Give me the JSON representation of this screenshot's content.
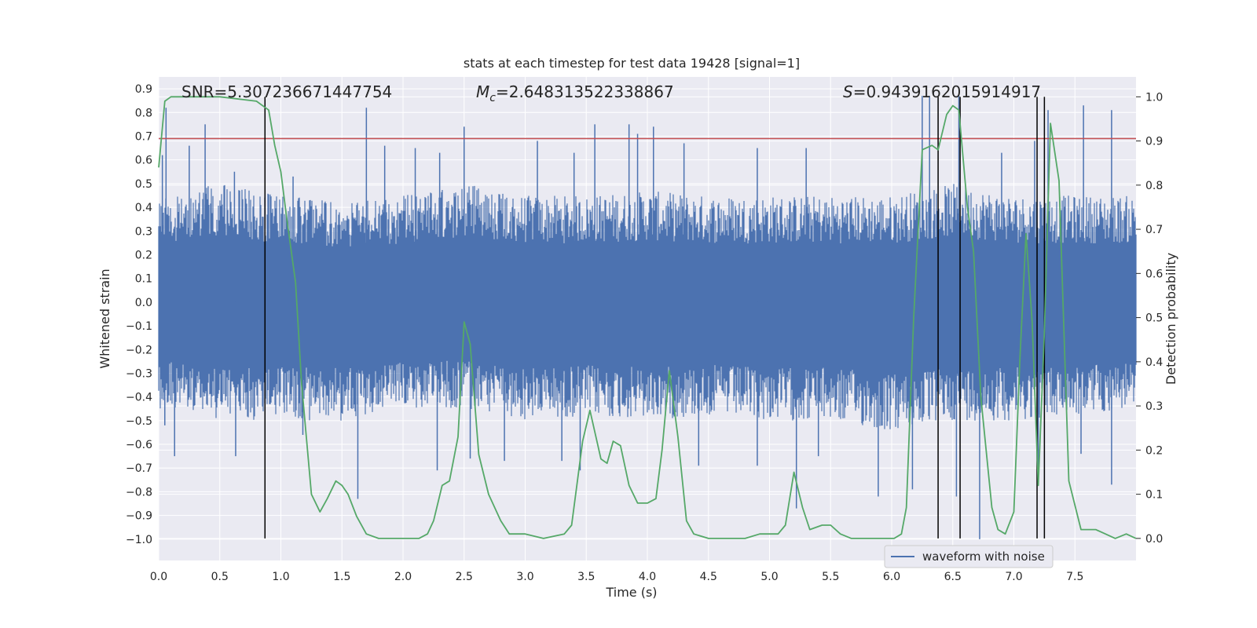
{
  "chart_data": {
    "type": "line",
    "title": "stats at each timestep for test data 19428 [signal=1]",
    "xlabel": "Time (s)",
    "ylabel_left": "Whitened strain",
    "ylabel_right": "Detection probability",
    "xlim": [
      0.0,
      8.0
    ],
    "ylim_left": [
      -1.09,
      0.95
    ],
    "ylim_right": [
      -0.05,
      1.045
    ],
    "x_ticks": [
      "0.0",
      "0.5",
      "1.0",
      "1.5",
      "2.0",
      "2.5",
      "3.0",
      "3.5",
      "4.0",
      "4.5",
      "5.0",
      "5.5",
      "6.0",
      "6.5",
      "7.0",
      "7.5"
    ],
    "y_ticks_left": [
      "0.9",
      "0.8",
      "0.7",
      "0.6",
      "0.5",
      "0.4",
      "0.3",
      "0.2",
      "0.1",
      "0.0",
      "−0.1",
      "−0.2",
      "−0.3",
      "−0.4",
      "−0.5",
      "−0.6",
      "−0.7",
      "−0.8",
      "−0.9",
      "−1.0"
    ],
    "y_ticks_right": [
      "1.0",
      "0.9",
      "0.8",
      "0.7",
      "0.6",
      "0.5",
      "0.4",
      "0.3",
      "0.2",
      "0.1",
      "0.0"
    ],
    "grid": true,
    "legend_position": "lower-right",
    "annotations": {
      "snr": "SNR=5.307236671447754",
      "mc_symbol": "M",
      "mc_sub": "c",
      "mc_value": "=2.648313522338867",
      "s_symbol": "S",
      "s_value": "=0.9439162015914917"
    },
    "colors": {
      "waveform": "#4c72b0",
      "probability": "#55a868",
      "threshold": "#c44e52",
      "markers": "#000000",
      "axes_bg": "#eaeaf2"
    },
    "threshold_y_left": 0.69,
    "vertical_markers_x": [
      0.87,
      6.38,
      6.56,
      7.19,
      7.25
    ],
    "series": [
      {
        "name": "waveform with noise",
        "type": "noise-band",
        "envelope_x": [
          0.0,
          0.5,
          1.0,
          1.5,
          2.0,
          2.5,
          3.0,
          3.5,
          4.0,
          4.5,
          5.0,
          5.5,
          6.0,
          6.5,
          7.0,
          7.5,
          8.0
        ],
        "envelope_upper": [
          0.45,
          0.5,
          0.45,
          0.42,
          0.45,
          0.5,
          0.45,
          0.45,
          0.47,
          0.45,
          0.45,
          0.45,
          0.45,
          0.5,
          0.45,
          0.45,
          0.45
        ],
        "envelope_lower": [
          -0.45,
          -0.5,
          -0.5,
          -0.5,
          -0.45,
          -0.45,
          -0.5,
          -0.48,
          -0.5,
          -0.48,
          -0.5,
          -0.5,
          -0.55,
          -0.5,
          -0.5,
          -0.48,
          -0.45
        ],
        "spikes_up": [
          [
            0.03,
            0.62
          ],
          [
            0.06,
            0.82
          ],
          [
            0.25,
            0.66
          ],
          [
            0.38,
            0.75
          ],
          [
            0.62,
            0.55
          ],
          [
            1.1,
            0.53
          ],
          [
            1.7,
            0.82
          ],
          [
            1.85,
            0.66
          ],
          [
            2.1,
            0.65
          ],
          [
            2.3,
            0.63
          ],
          [
            2.5,
            0.74
          ],
          [
            3.1,
            0.68
          ],
          [
            3.4,
            0.63
          ],
          [
            3.57,
            0.75
          ],
          [
            3.85,
            0.75
          ],
          [
            3.92,
            0.71
          ],
          [
            4.05,
            0.74
          ],
          [
            4.3,
            0.67
          ],
          [
            4.9,
            0.65
          ],
          [
            5.3,
            0.65
          ],
          [
            6.25,
            0.87
          ],
          [
            6.31,
            0.87
          ],
          [
            6.55,
            0.87
          ],
          [
            6.9,
            0.63
          ],
          [
            7.17,
            0.68
          ],
          [
            7.28,
            0.81
          ],
          [
            7.57,
            0.83
          ],
          [
            7.8,
            0.81
          ]
        ],
        "spikes_down": [
          [
            0.05,
            -0.52
          ],
          [
            0.13,
            -0.65
          ],
          [
            0.63,
            -0.65
          ],
          [
            1.18,
            -0.56
          ],
          [
            1.63,
            -0.83
          ],
          [
            2.28,
            -0.71
          ],
          [
            2.55,
            -0.66
          ],
          [
            2.83,
            -0.67
          ],
          [
            3.3,
            -0.67
          ],
          [
            3.45,
            -0.71
          ],
          [
            4.42,
            -0.69
          ],
          [
            4.9,
            -0.69
          ],
          [
            5.22,
            -0.87
          ],
          [
            5.4,
            -0.65
          ],
          [
            5.89,
            -0.82
          ],
          [
            6.17,
            -0.79
          ],
          [
            6.53,
            -0.82
          ],
          [
            6.72,
            -1.0
          ],
          [
            7.2,
            -0.72
          ],
          [
            7.55,
            -0.64
          ],
          [
            7.8,
            -0.77
          ]
        ]
      },
      {
        "name": "Detection probability",
        "axis": "right",
        "x": [
          0.0,
          0.05,
          0.1,
          0.2,
          0.3,
          0.5,
          0.8,
          0.9,
          0.95,
          1.0,
          1.05,
          1.12,
          1.17,
          1.25,
          1.32,
          1.38,
          1.45,
          1.5,
          1.55,
          1.62,
          1.7,
          1.8,
          2.0,
          2.13,
          2.2,
          2.25,
          2.32,
          2.38,
          2.45,
          2.5,
          2.55,
          2.62,
          2.7,
          2.8,
          2.87,
          2.92,
          3.0,
          3.15,
          3.32,
          3.38,
          3.47,
          3.53,
          3.62,
          3.67,
          3.72,
          3.78,
          3.85,
          3.92,
          4.0,
          4.07,
          4.12,
          4.18,
          4.25,
          4.32,
          4.38,
          4.5,
          4.8,
          4.92,
          5.0,
          5.07,
          5.13,
          5.2,
          5.27,
          5.33,
          5.43,
          5.5,
          5.58,
          5.67,
          5.75,
          6.02,
          6.08,
          6.12,
          6.18,
          6.25,
          6.33,
          6.38,
          6.45,
          6.5,
          6.55,
          6.62,
          6.67,
          6.73,
          6.82,
          6.87,
          6.93,
          7.0,
          7.05,
          7.1,
          7.15,
          7.2,
          7.25,
          7.3,
          7.37,
          7.45,
          7.55,
          7.62,
          7.67,
          7.75,
          7.83,
          7.92,
          8.0
        ],
        "y": [
          0.84,
          0.99,
          1.0,
          1.0,
          1.0,
          1.0,
          0.99,
          0.97,
          0.89,
          0.83,
          0.72,
          0.58,
          0.35,
          0.1,
          0.06,
          0.09,
          0.13,
          0.12,
          0.1,
          0.05,
          0.01,
          0.0,
          0.0,
          0.0,
          0.01,
          0.04,
          0.12,
          0.13,
          0.23,
          0.49,
          0.44,
          0.19,
          0.1,
          0.04,
          0.01,
          0.01,
          0.01,
          0.0,
          0.01,
          0.03,
          0.22,
          0.29,
          0.18,
          0.17,
          0.22,
          0.21,
          0.12,
          0.08,
          0.08,
          0.09,
          0.2,
          0.38,
          0.23,
          0.04,
          0.01,
          0.0,
          0.0,
          0.01,
          0.01,
          0.01,
          0.03,
          0.15,
          0.07,
          0.02,
          0.03,
          0.03,
          0.01,
          0.0,
          0.0,
          0.0,
          0.01,
          0.07,
          0.5,
          0.88,
          0.89,
          0.88,
          0.96,
          0.98,
          0.97,
          0.75,
          0.65,
          0.32,
          0.07,
          0.02,
          0.01,
          0.06,
          0.41,
          0.69,
          0.49,
          0.12,
          0.47,
          0.94,
          0.81,
          0.13,
          0.02,
          0.02,
          0.02,
          0.01,
          0.0,
          0.01,
          0.0
        ]
      }
    ]
  }
}
